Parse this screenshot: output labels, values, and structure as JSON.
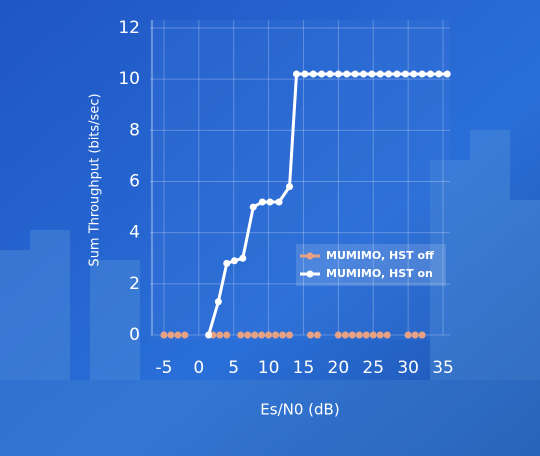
{
  "chart_data": {
    "type": "line",
    "x_label": "Es/N0 (dB)",
    "y_label": "Sum Throughput (bits/sec)",
    "xlim": [
      -7,
      36
    ],
    "ylim": [
      0,
      12
    ],
    "xticks": [
      -5,
      0,
      5,
      10,
      15,
      20,
      25,
      30,
      35
    ],
    "yticks": [
      0,
      2,
      4,
      6,
      8,
      10,
      12
    ],
    "grid": true,
    "legend": "right",
    "series": [
      {
        "name": "MUMIMO, HST off",
        "color": "#e9a184",
        "x": [
          -5,
          -4,
          -3,
          -2,
          2,
          3,
          4,
          6,
          7,
          8,
          9,
          10,
          11,
          12,
          13,
          16,
          17,
          20,
          21,
          22,
          23,
          24,
          25,
          26,
          27,
          30,
          31,
          32
        ],
        "values": [
          0,
          0,
          0,
          0,
          0,
          0,
          0,
          0,
          0,
          0,
          0,
          0,
          0,
          0,
          0,
          0,
          0,
          0,
          0,
          0,
          0,
          0,
          0,
          0,
          0,
          0,
          0,
          0
        ]
      },
      {
        "name": "MUMIMO, HST on",
        "color": "#ffffff",
        "x": [
          1.4,
          2.8,
          4,
          5.1,
          6.3,
          7.8,
          9.1,
          10.2,
          11.5,
          13,
          14,
          15.2,
          16.4,
          17.6,
          18.8,
          20,
          21.2,
          22.4,
          23.6,
          24.8,
          26,
          27.2,
          28.4,
          29.6,
          30.8,
          32,
          33.2,
          34.4,
          35.6
        ],
        "values": [
          0,
          1.3,
          2.8,
          2.9,
          3.0,
          5.0,
          5.2,
          5.2,
          5.2,
          5.8,
          10.2,
          10.2,
          10.2,
          10.2,
          10.2,
          10.2,
          10.2,
          10.2,
          10.2,
          10.2,
          10.2,
          10.2,
          10.2,
          10.2,
          10.2,
          10.2,
          10.2,
          10.2,
          10.2
        ]
      }
    ]
  }
}
